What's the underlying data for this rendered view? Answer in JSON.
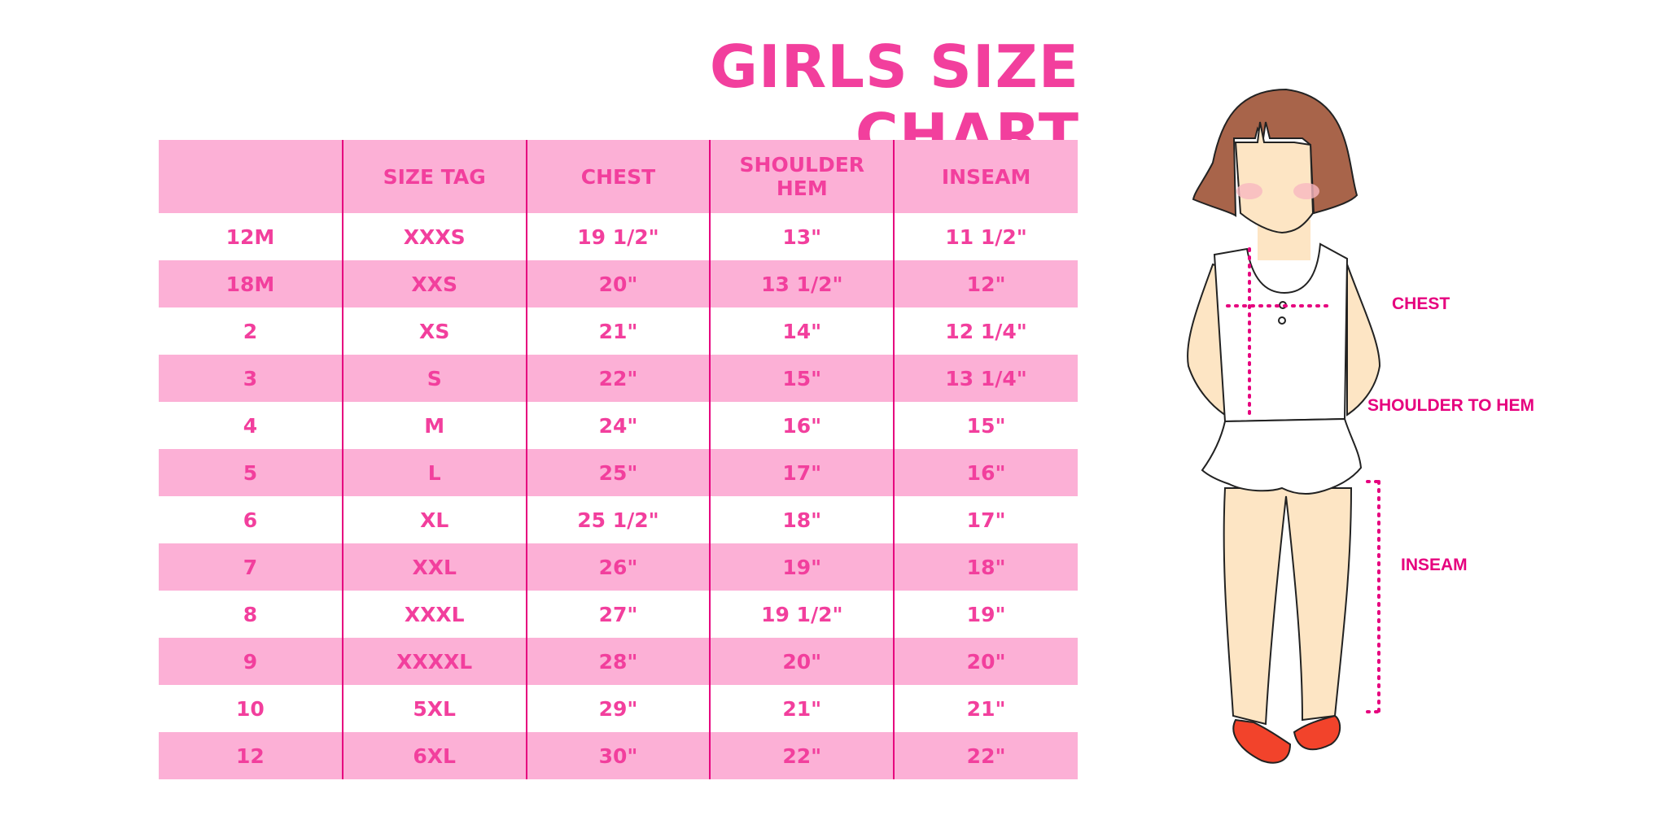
{
  "title": "GIRLS SIZE CHART",
  "table": {
    "headers": [
      "",
      "SIZE TAG",
      "CHEST",
      "SHOULDER HEM",
      "INSEAM"
    ],
    "rows": [
      [
        "12M",
        "XXXS",
        "19 1/2\"",
        "13\"",
        "11 1/2\""
      ],
      [
        "18M",
        "XXS",
        "20\"",
        "13 1/2\"",
        "12\""
      ],
      [
        "2",
        "XS",
        "21\"",
        "14\"",
        "12 1/4\""
      ],
      [
        "3",
        "S",
        "22\"",
        "15\"",
        "13 1/4\""
      ],
      [
        "4",
        "M",
        "24\"",
        "16\"",
        "15\""
      ],
      [
        "5",
        "L",
        "25\"",
        "17\"",
        "16\""
      ],
      [
        "6",
        "XL",
        "25 1/2\"",
        "18\"",
        "17\""
      ],
      [
        "7",
        "XXL",
        "26\"",
        "19\"",
        "18\""
      ],
      [
        "8",
        "XXXL",
        "27\"",
        "19 1/2\"",
        "19\""
      ],
      [
        "9",
        "XXXXL",
        "28\"",
        "20\"",
        "20\""
      ],
      [
        "10",
        "5XL",
        "29\"",
        "21\"",
        "21\""
      ],
      [
        "12",
        "6XL",
        "30\"",
        "22\"",
        "22\""
      ]
    ]
  },
  "figure": {
    "labels": {
      "chest": "CHEST",
      "shoulder": "SHOULDER TO HEM",
      "inseam": "INSEAM"
    }
  },
  "colors": {
    "accent": "#f23f9d",
    "band": "#fcb0d6",
    "divider": "#e6007e",
    "hair": "#a8644a",
    "skin": "#fde5c4",
    "shoes": "#f2432b"
  }
}
